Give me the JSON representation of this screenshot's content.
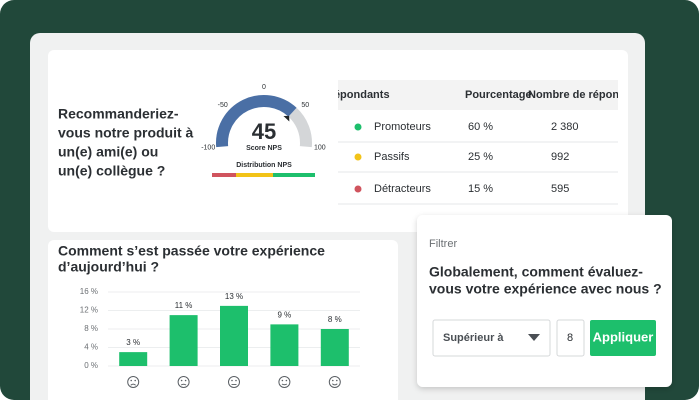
{
  "nps_card": {
    "question": [
      "Recommanderiez-",
      "vous notre produit à",
      "un(e) ami(e) ou",
      "un(e) collègue ?"
    ],
    "gauge": {
      "value": 45,
      "lim": [
        -100,
        100
      ],
      "ticks": [
        -100,
        -50,
        0,
        50,
        100
      ],
      "label": "Score NPS",
      "caption": "Distribution NPS"
    },
    "table": {
      "headers": [
        "Répondants",
        "Pourcentage",
        "Nombre de réponses"
      ],
      "rows": [
        [
          "Promoteurs",
          "60 %",
          "2 380"
        ],
        [
          "Passifs",
          "25 %",
          "992"
        ],
        [
          "Détracteurs",
          "15 %",
          "595"
        ]
      ],
      "colors": [
        "#1dbf6c",
        "#f2c318",
        "#d0545e"
      ]
    }
  },
  "experience_card": {
    "title": [
      "Comment s’est passée votre expérience",
      "d’aujourd’hui ?"
    ],
    "chart": {
      "type": "bar",
      "values": [
        3,
        11,
        13,
        9,
        8
      ],
      "value_labels": [
        "3 %",
        "11 %",
        "13 %",
        "9 %",
        "8 %"
      ],
      "color": "#1dbf6c",
      "ylim": [
        0,
        16
      ],
      "yticks": [
        {
          "value": 0,
          "label": "0 %"
        },
        {
          "value": 4,
          "label": "4 %"
        },
        {
          "value": 8,
          "label": "8 %"
        },
        {
          "value": 12,
          "label": "12 %"
        },
        {
          "value": 16,
          "label": "16 %"
        }
      ]
    }
  },
  "filter_card": {
    "label": "Filtrer",
    "question": [
      "Globalement, comment évaluez-",
      "vous votre expérience avec nous ?"
    ],
    "select": "Supérieur à",
    "input": "8",
    "button": "Appliquer"
  }
}
